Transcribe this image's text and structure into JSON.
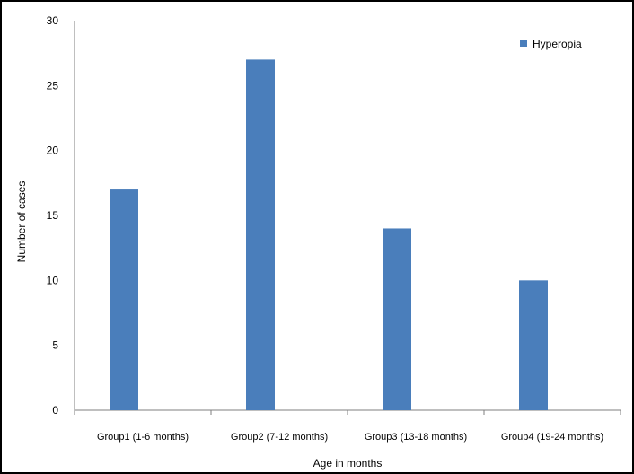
{
  "chart_data": {
    "type": "bar",
    "categories": [
      "Group1 (1-6 months)",
      "Group2 (7-12 months)",
      "Group3 (13-18 months)",
      "Group4 (19-24 months)"
    ],
    "series": [
      {
        "name": "Hyperopia",
        "values": [
          17,
          27,
          14,
          10
        ],
        "color": "#4a7ebb"
      }
    ],
    "xlabel": "Age in months",
    "ylabel": "Number of cases",
    "ylim": [
      0,
      30
    ],
    "yticks": [
      0,
      5,
      10,
      15,
      20,
      25,
      30
    ],
    "grid": false,
    "legend": "top-right"
  }
}
